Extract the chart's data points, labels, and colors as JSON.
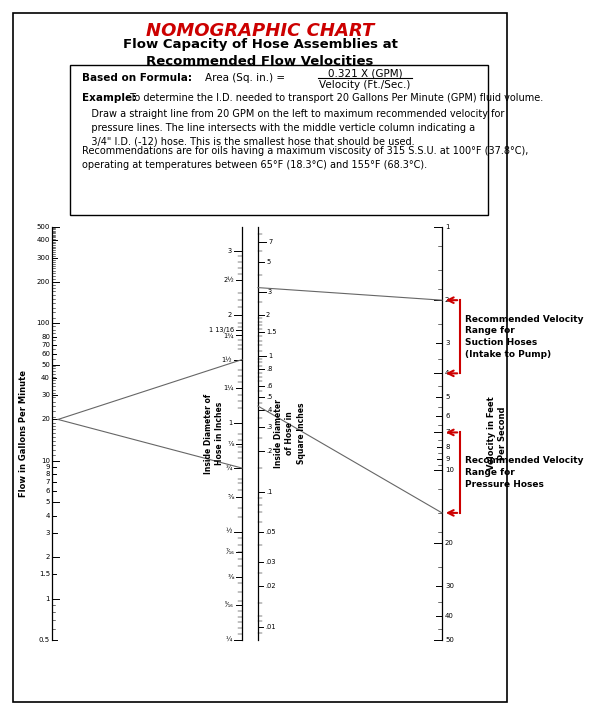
{
  "title_red": "NOMOGRAPHIC CHART",
  "title_black": "Flow Capacity of Hose Assemblies at\nRecommended Flow Velocities",
  "formula_label": "Based on Formula:",
  "formula_area": "Area (Sq. in.) =",
  "formula_num": "0.321 X (GPM)",
  "formula_den": "Velocity (Ft./Sec.)",
  "example_bold": "Example:",
  "example_text": " To determine the I.D. needed to transport 20 Gallons Per Minute (GPM) fluid volume.",
  "example_para": "   Draw a straight line from 20 GPM on the left to maximum recommended velocity for\n   pressure lines. The line intersects with the middle verticle column indicating a\n   3/4\" I.D. (-12) hose. This is the smallest hose that should be used.",
  "recommendation": "Recommendations are for oils having a maximum viscosity of 315 S.S.U. at 100°F (37.8°C),\noperating at temperatures between 65°F (18.3°C) and 155°F (68.3°C).",
  "suction_label": "Recommended Velocity\nRange for\nSuction Hoses\n(Intake to Pump)",
  "pressure_label": "Recommended Velocity\nRange for\nPressure Hoses",
  "col1_label": "Flow in Gallons Per Minute",
  "col2a_label": "Inside Diameter of\nHose in Inches",
  "col2b_label": "Inside Diameter\nof Hose in\nSquare Inches",
  "col3_label": "Velocity in Feet\nPer Second",
  "bg_color": "#ffffff",
  "text_color": "#000000",
  "red_color": "#cc0000",
  "gray_color": "#666666"
}
